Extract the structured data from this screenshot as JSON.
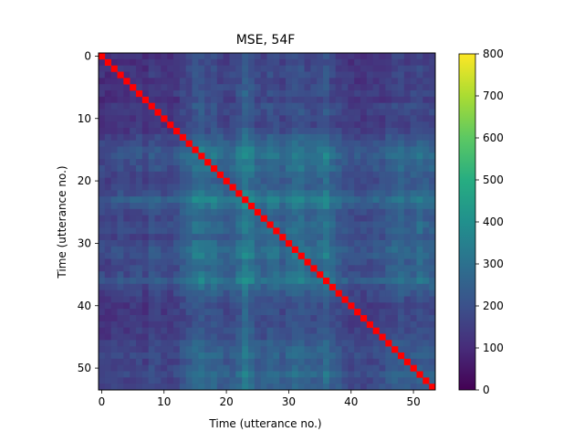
{
  "chart_data": {
    "type": "heatmap",
    "title": "MSE, 54F",
    "xlabel": "Time (utterance no.)",
    "ylabel": "Time (utterance no.)",
    "n": 54,
    "xlim": [
      -0.5,
      53.5
    ],
    "ylim": [
      53.5,
      -0.5
    ],
    "x_ticks": [
      0,
      10,
      20,
      30,
      40,
      50
    ],
    "y_ticks": [
      0,
      10,
      20,
      30,
      40,
      50
    ],
    "colorbar": {
      "min": 0,
      "max": 800,
      "ticks": [
        0,
        100,
        200,
        300,
        400,
        500,
        600,
        700,
        800
      ]
    },
    "colormap": "viridis",
    "diagonal_color": "#ff0000",
    "profile": [
      120,
      110,
      130,
      140,
      120,
      135,
      145,
      115,
      160,
      150,
      130,
      130,
      150,
      205,
      235,
      300,
      320,
      265,
      280,
      230,
      210,
      220,
      280,
      400,
      320,
      240,
      230,
      260,
      260,
      210,
      260,
      300,
      300,
      245,
      240,
      270,
      340,
      240,
      200,
      170,
      150,
      150,
      145,
      150,
      165,
      165,
      200,
      220,
      240,
      200,
      215,
      260,
      220,
      220
    ],
    "cell_values_note": ""
  }
}
